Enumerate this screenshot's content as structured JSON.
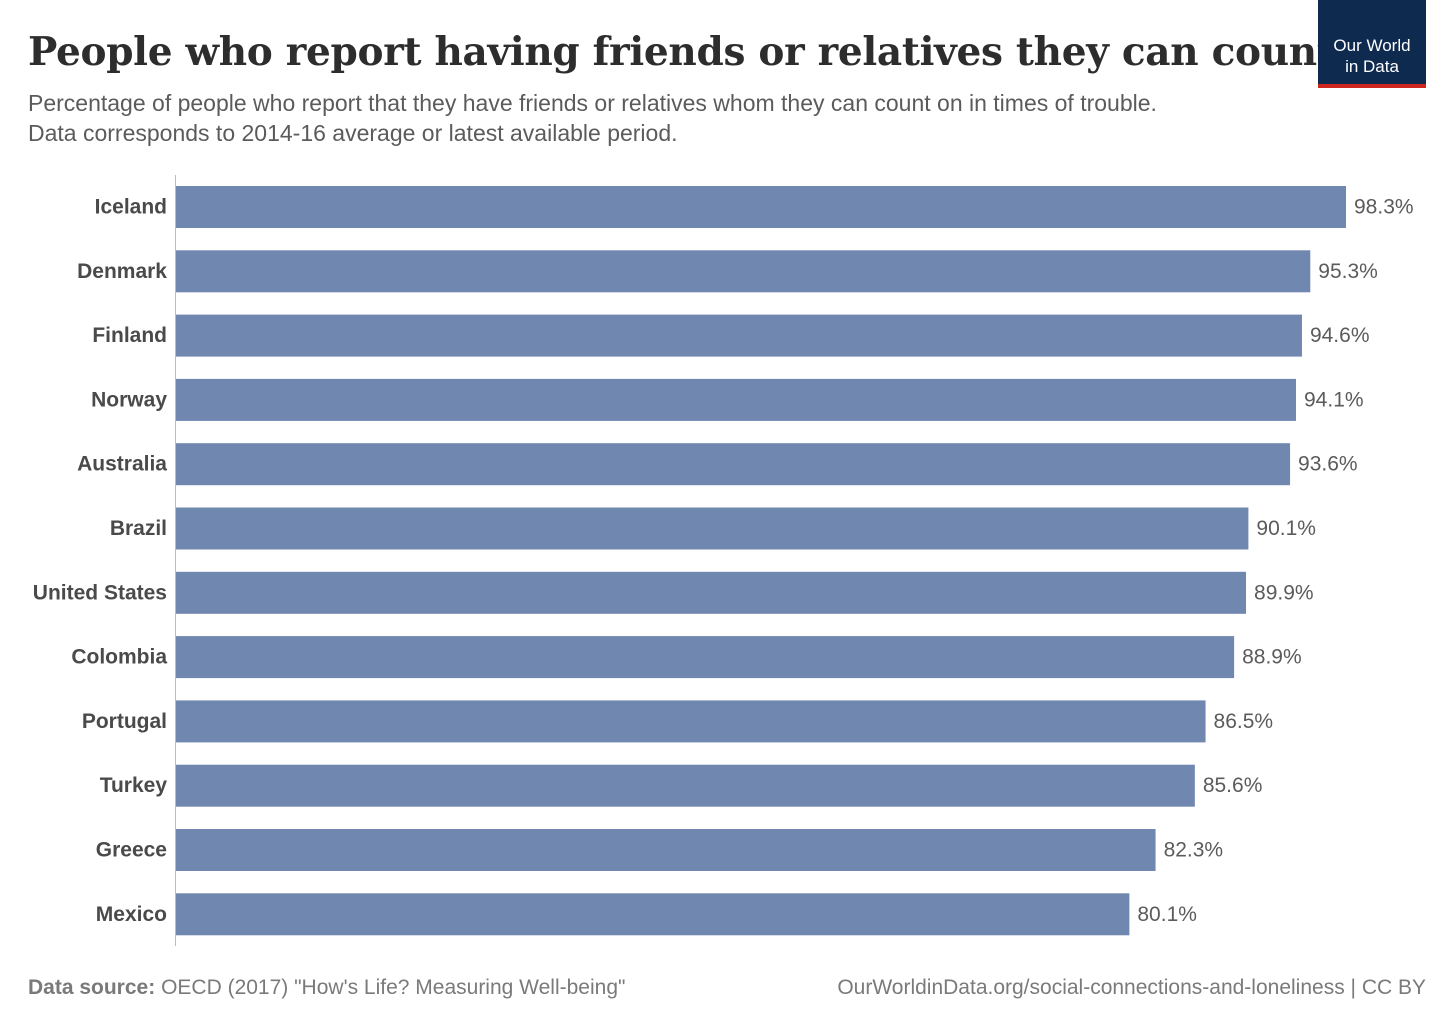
{
  "title": "People who report having friends or relatives they can count on",
  "subtitle_lines": [
    "Percentage of people who report that they have friends or relatives whom they can count on in times of trouble.",
    "Data corresponds to 2014-16 average or latest available period."
  ],
  "logo": {
    "line1": "Our World",
    "line2": "in Data"
  },
  "footer": {
    "source_label": "Data source:",
    "source_text": "OECD (2017) \"How's Life? Measuring Well-being\"",
    "url_license": "OurWorldinData.org/social-connections-and-loneliness | CC BY"
  },
  "colors": {
    "bar": "#7087b0",
    "logo_bg": "#0f2a4f",
    "logo_accent": "#ce261e"
  },
  "chart_data": {
    "type": "bar",
    "orientation": "horizontal",
    "unit": "%",
    "categories": [
      "Iceland",
      "Denmark",
      "Finland",
      "Norway",
      "Australia",
      "Brazil",
      "United States",
      "Colombia",
      "Portugal",
      "Turkey",
      "Greece",
      "Mexico"
    ],
    "values": [
      98.3,
      95.3,
      94.6,
      94.1,
      93.6,
      90.1,
      89.9,
      88.9,
      86.5,
      85.6,
      82.3,
      80.1
    ],
    "value_labels": [
      "98.3%",
      "95.3%",
      "94.6%",
      "94.1%",
      "93.6%",
      "90.1%",
      "89.9%",
      "88.9%",
      "86.5%",
      "85.6%",
      "82.3%",
      "80.1%"
    ],
    "xlim": [
      0,
      98.3
    ],
    "grid": false,
    "legend": "none"
  }
}
